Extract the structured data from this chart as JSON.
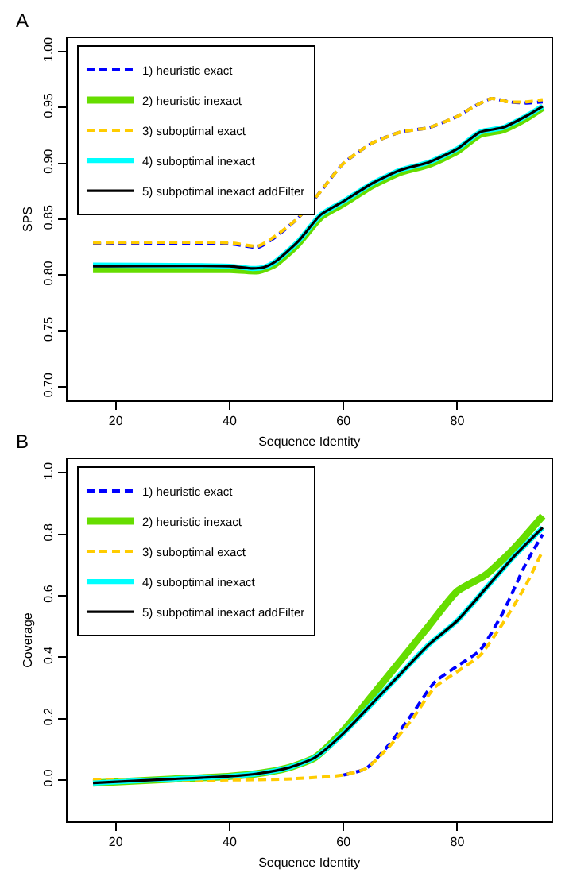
{
  "chart_data": [
    {
      "type": "line",
      "title": "A",
      "xlabel": "Sequence Identity",
      "ylabel": "SPS",
      "xlim": [
        11.5,
        96.5
      ],
      "xticks": [
        20,
        40,
        60,
        80
      ],
      "ylim": [
        0.688,
        1.012
      ],
      "yticks": [
        {
          "value": 0.7,
          "label": "0.70"
        },
        0.75,
        {
          "value": 0.8,
          "label": "0.80"
        },
        0.85,
        {
          "value": 0.9,
          "label": "0.90"
        },
        0.95,
        {
          "value": 1.0,
          "label": "1.00"
        }
      ],
      "legend": "top left",
      "series": [
        {
          "name": "1) heuristic exact",
          "color": "#0000ff",
          "line_style": "dashed",
          "x": [
            16,
            40,
            45,
            48,
            52,
            56,
            60,
            65,
            70,
            75,
            80,
            83,
            86,
            89,
            92,
            95
          ],
          "values": [
            0.828,
            0.828,
            0.825,
            0.834,
            0.851,
            0.875,
            0.9,
            0.918,
            0.928,
            0.932,
            0.942,
            0.951,
            0.958,
            0.955,
            0.954,
            0.955
          ]
        },
        {
          "name": "2) heuristic inexact",
          "color": "#66dd00",
          "line_style": "solid",
          "x": [
            16,
            40,
            45,
            48,
            52,
            56,
            60,
            65,
            70,
            75,
            80,
            84,
            88,
            92,
            95
          ],
          "values": [
            0.805,
            0.805,
            0.804,
            0.81,
            0.828,
            0.852,
            0.864,
            0.88,
            0.892,
            0.899,
            0.911,
            0.926,
            0.93,
            0.94,
            0.95
          ]
        },
        {
          "name": "3) suboptimal exact",
          "color": "#ffcc00",
          "line_style": "dashed",
          "x": [
            16,
            40,
            45,
            48,
            52,
            56,
            60,
            65,
            70,
            75,
            80,
            83,
            86,
            89,
            92,
            95
          ],
          "values": [
            0.829,
            0.829,
            0.826,
            0.835,
            0.851,
            0.875,
            0.9,
            0.918,
            0.928,
            0.932,
            0.942,
            0.951,
            0.958,
            0.955,
            0.955,
            0.957
          ]
        },
        {
          "name": "4) suboptimal inexact",
          "color": "#00ffff",
          "line_style": "solid",
          "x": [
            16,
            40,
            44,
            46,
            48,
            52,
            56,
            60,
            65,
            70,
            75,
            80,
            84,
            88,
            92,
            95
          ],
          "values": [
            0.809,
            0.808,
            0.806,
            0.807,
            0.812,
            0.83,
            0.854,
            0.866,
            0.882,
            0.894,
            0.901,
            0.913,
            0.928,
            0.932,
            0.942,
            0.951
          ]
        },
        {
          "name": "5) subpotimal inexact addFilter",
          "color": "#000000",
          "line_style": "solid",
          "x": [
            16,
            40,
            44,
            46,
            48,
            52,
            56,
            60,
            65,
            70,
            75,
            80,
            84,
            88,
            92,
            95
          ],
          "values": [
            0.808,
            0.808,
            0.806,
            0.807,
            0.812,
            0.83,
            0.854,
            0.866,
            0.882,
            0.894,
            0.901,
            0.913,
            0.928,
            0.932,
            0.942,
            0.951
          ]
        }
      ]
    },
    {
      "type": "line",
      "title": "B",
      "xlabel": "Sequence Identity",
      "ylabel": "Coverage",
      "xlim": [
        11.5,
        96.5
      ],
      "xticks": [
        20,
        40,
        60,
        80
      ],
      "ylim": [
        -0.135,
        1.045
      ],
      "yticks": [
        {
          "value": 0,
          "label": "0.0"
        },
        0.2,
        0.4,
        0.6,
        0.8,
        {
          "value": 1,
          "label": "1.0"
        }
      ],
      "legend": "top left",
      "series": [
        {
          "name": "1) heuristic exact",
          "color": "#0000ff",
          "line_style": "dashed",
          "x": [
            60,
            64,
            68,
            72,
            76,
            80,
            84,
            88,
            92,
            95
          ],
          "values": [
            0.016,
            0.038,
            0.115,
            0.213,
            0.318,
            0.371,
            0.423,
            0.545,
            0.703,
            0.8
          ]
        },
        {
          "name": "2) heuristic inexact",
          "color": "#66dd00",
          "line_style": "solid",
          "x": [
            16,
            30,
            40,
            45,
            50,
            55,
            60,
            65,
            70,
            75,
            80,
            85,
            90,
            95
          ],
          "values": [
            -0.01,
            0.003,
            0.012,
            0.021,
            0.038,
            0.073,
            0.161,
            0.274,
            0.388,
            0.502,
            0.615,
            0.668,
            0.755,
            0.86
          ]
        },
        {
          "name": "3) suboptimal exact",
          "color": "#ffcc00",
          "line_style": "dashed",
          "x": [
            16,
            30,
            40,
            50,
            60,
            64,
            68,
            72,
            76,
            80,
            84,
            88,
            92,
            95
          ],
          "values": [
            0.0,
            0.0,
            0.0,
            0.003,
            0.016,
            0.038,
            0.108,
            0.196,
            0.301,
            0.353,
            0.406,
            0.51,
            0.633,
            0.747
          ]
        },
        {
          "name": "4) suboptimal inexact",
          "color": "#00ffff",
          "line_style": "solid",
          "x": [
            16,
            30,
            40,
            45,
            50,
            55,
            60,
            65,
            70,
            75,
            80,
            85,
            90,
            95
          ],
          "values": [
            -0.01,
            0.003,
            0.012,
            0.021,
            0.038,
            0.073,
            0.152,
            0.248,
            0.345,
            0.441,
            0.519,
            0.624,
            0.729,
            0.822
          ]
        },
        {
          "name": "5) subpotimal inexact addFilter",
          "color": "#000000",
          "line_style": "solid",
          "x": [
            16,
            30,
            40,
            45,
            50,
            55,
            60,
            65,
            70,
            75,
            80,
            85,
            90,
            95
          ],
          "values": [
            -0.01,
            0.003,
            0.012,
            0.021,
            0.038,
            0.073,
            0.152,
            0.248,
            0.345,
            0.441,
            0.519,
            0.624,
            0.729,
            0.822
          ]
        }
      ]
    }
  ]
}
